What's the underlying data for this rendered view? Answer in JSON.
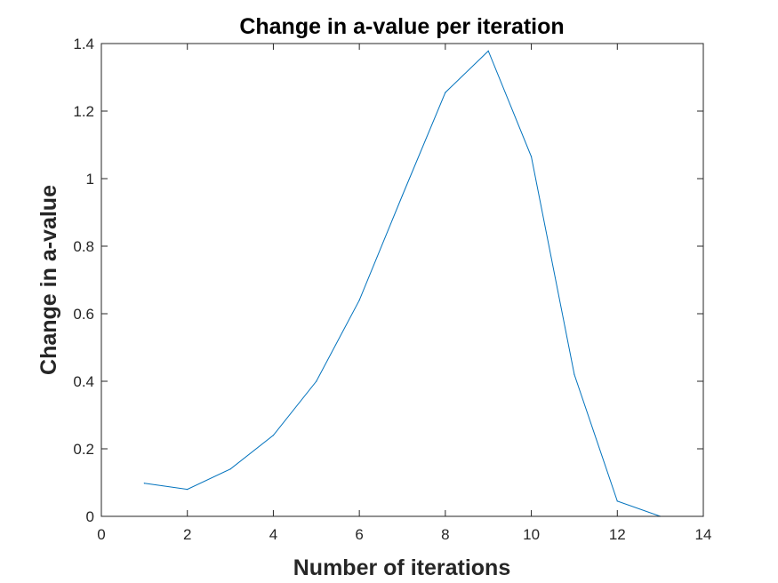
{
  "chart_data": {
    "type": "line",
    "title": "Change in a-value per iteration",
    "xlabel": "Number of iterations",
    "ylabel": "Change in a-value",
    "xlim": [
      0,
      14
    ],
    "ylim": [
      0,
      1.4
    ],
    "xticks": [
      "0",
      "2",
      "4",
      "6",
      "8",
      "10",
      "12",
      "14"
    ],
    "yticks": [
      "0",
      "0.2",
      "0.4",
      "0.6",
      "0.8",
      "1",
      "1.2",
      "1.4"
    ],
    "grid": false,
    "series": [
      {
        "color": "#0072BD",
        "x": [
          1,
          2,
          3,
          4,
          5,
          6,
          7,
          8,
          9,
          10,
          11,
          12,
          13,
          14
        ],
        "y": [
          0.098,
          0.08,
          0.14,
          0.24,
          0.4,
          0.64,
          0.95,
          1.255,
          1.378,
          1.065,
          0.42,
          0.045,
          0.0,
          0.0
        ]
      }
    ]
  }
}
